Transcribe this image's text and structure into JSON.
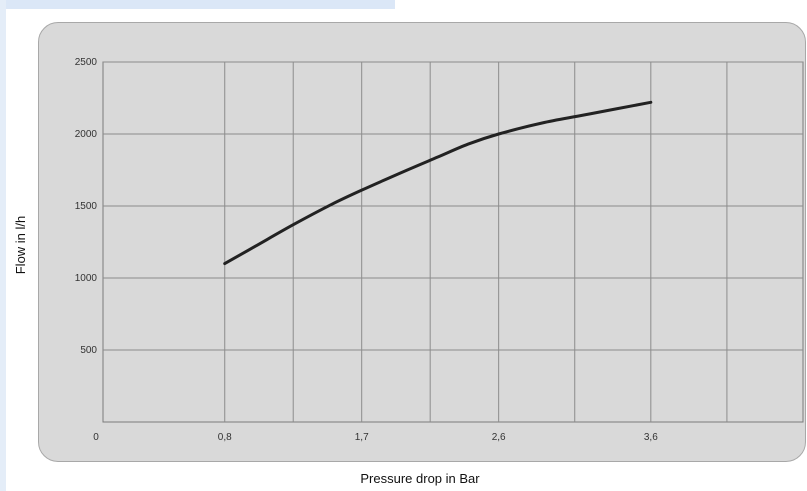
{
  "chart_data": {
    "type": "line",
    "xlabel": "Pressure drop in Bar",
    "ylabel": "Flow in l/h",
    "x_ticks": [
      0.8,
      1.7,
      2.6,
      3.6
    ],
    "x_tick_labels": [
      "0,8",
      "1,7",
      "2,6",
      "3,6"
    ],
    "y_ticks": [
      500,
      1000,
      1500,
      2000,
      2500
    ],
    "y_tick_labels": [
      "500",
      "1000",
      "1500",
      "2000",
      "2500"
    ],
    "origin_label": "0",
    "xlim": [
      0,
      4.6
    ],
    "ylim": [
      0,
      2500
    ],
    "grid": true,
    "series": [
      {
        "x": [
          0.8,
          1.0,
          1.25,
          1.5,
          1.7,
          2.0,
          2.2,
          2.4,
          2.6,
          2.9,
          3.2,
          3.6
        ],
        "values": [
          1100,
          1220,
          1370,
          1510,
          1610,
          1750,
          1840,
          1930,
          2000,
          2080,
          2140,
          2220
        ],
        "color": "#222222"
      }
    ]
  }
}
